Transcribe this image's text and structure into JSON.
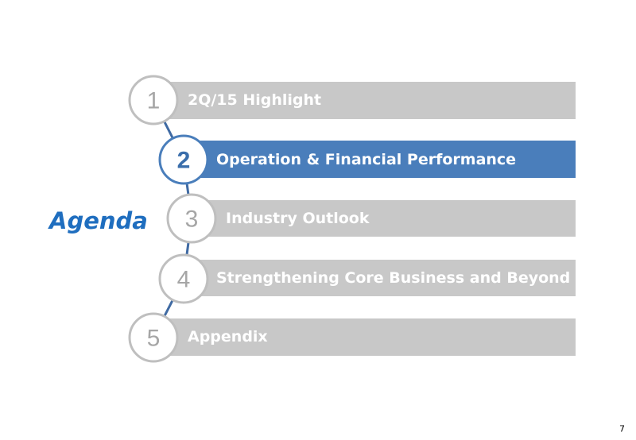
{
  "title": "Agenda",
  "items": [
    {
      "number": "1",
      "label": "2Q/15 Highlight"
    },
    {
      "number": "2",
      "label": "Operation & Financial Performance"
    },
    {
      "number": "3",
      "label": "Industry Outlook"
    },
    {
      "number": "4",
      "label": "Strengthening Core Business and Beyond"
    },
    {
      "number": "5",
      "label": "Appendix"
    }
  ],
  "page_number": "7"
}
